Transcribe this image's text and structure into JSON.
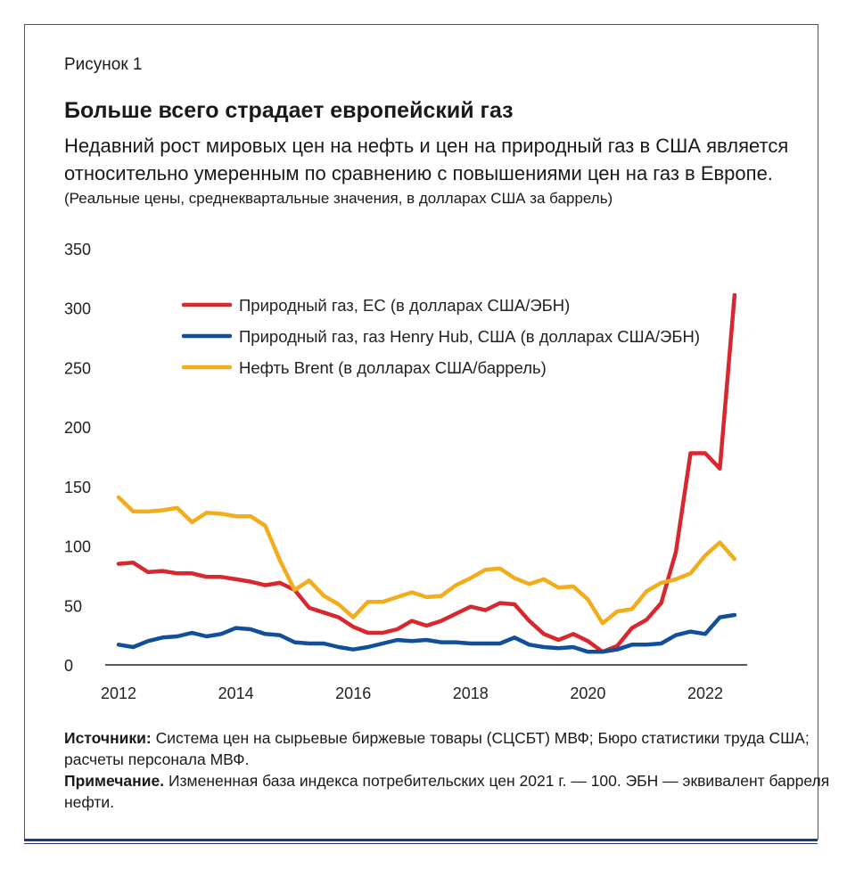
{
  "figure_label": "Рисунок 1",
  "title": "Больше всего страдает европейский газ",
  "subtitle": "Недавний рост мировых цен на нефть и цен на природный газ в США является относительно умеренным по сравнению с повышениями цен на газ в Европе.",
  "units": "(Реальные цены, среднеквартальные значения, в долларах США за баррель)",
  "notes": {
    "sources_label": "Источники:",
    "sources_text": " Система цен на сырьевые биржевые товары (СЦСБТ) МВФ; Бюро статистики труда США; расчеты персонала МВФ.",
    "note_label": "Примечание.",
    "note_text": " Измененная база индекса потребительских цен 2021 г. — 100. ЭБН — эквивалент барреля нефти."
  },
  "chart_data": {
    "type": "line",
    "x_start": "2012 Q1",
    "frequency": "quarterly",
    "xticks": [
      "2012",
      "2014",
      "2016",
      "2018",
      "2020",
      "2022"
    ],
    "yticks": [
      "0",
      "50",
      "100",
      "150",
      "200",
      "250",
      "300",
      "350"
    ],
    "ylim": [
      0,
      350
    ],
    "grid": false,
    "legend_position": "top-left",
    "series": [
      {
        "name": "Природный газ, ЕС (в долларах США/ЭБН)",
        "color": "#d7282f",
        "values": [
          85,
          86,
          78,
          79,
          77,
          77,
          74,
          74,
          72,
          70,
          67,
          69,
          63,
          48,
          44,
          40,
          32,
          27,
          27,
          30,
          37,
          33,
          37,
          43,
          49,
          46,
          52,
          51,
          37,
          26,
          21,
          26,
          20,
          11,
          16,
          31,
          38,
          52,
          95,
          178,
          178,
          165,
          311
        ]
      },
      {
        "name": "Природный газ, газ Henry Hub, США (в долларах США/ЭБН)",
        "color": "#114f9b",
        "values": [
          17,
          15,
          20,
          23,
          24,
          27,
          24,
          26,
          31,
          30,
          26,
          25,
          19,
          18,
          18,
          15,
          13,
          15,
          18,
          21,
          20,
          21,
          19,
          19,
          18,
          18,
          18,
          23,
          17,
          15,
          14,
          15,
          11,
          11,
          13,
          17,
          17,
          18,
          25,
          28,
          26,
          40,
          42
        ]
      },
      {
        "name": "Нефть Brent (в долларах США/баррель)",
        "color": "#f2ac1c",
        "values": [
          141,
          129,
          129,
          130,
          132,
          120,
          128,
          127,
          125,
          125,
          117,
          88,
          63,
          71,
          58,
          51,
          40,
          53,
          53,
          57,
          61,
          57,
          58,
          67,
          73,
          80,
          81,
          73,
          68,
          72,
          65,
          66,
          55,
          35,
          45,
          47,
          62,
          69,
          72,
          77,
          92,
          103,
          89
        ]
      }
    ]
  }
}
